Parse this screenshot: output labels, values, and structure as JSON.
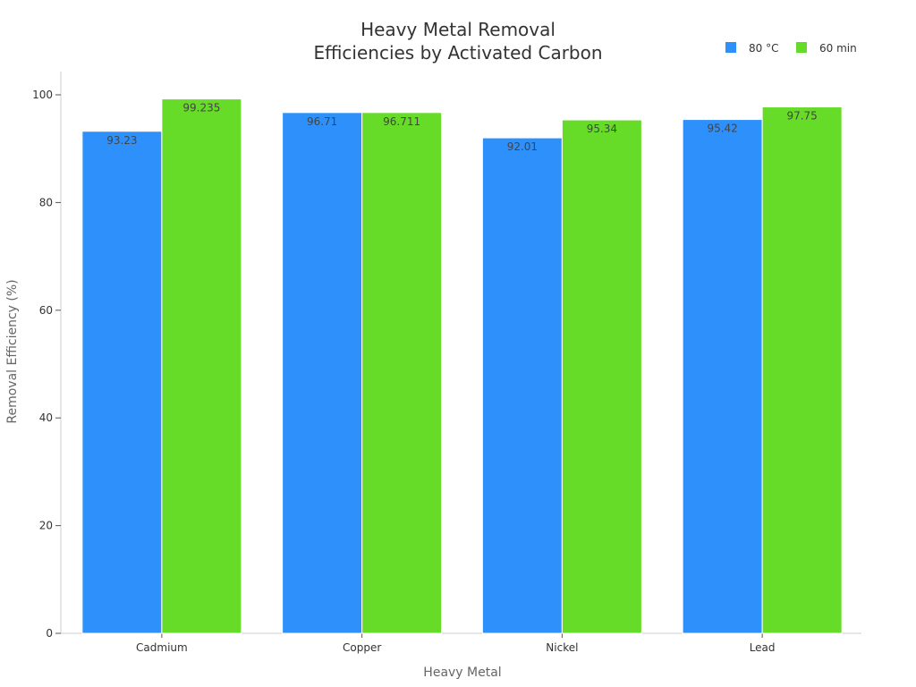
{
  "chart_data": {
    "type": "bar",
    "title_lines": [
      "Heavy Metal Removal",
      "Efficiencies by Activated Carbon"
    ],
    "xlabel": "Heavy Metal",
    "ylabel": "Removal Efficiency (%)",
    "categories": [
      "Cadmium",
      "Copper",
      "Nickel",
      "Lead"
    ],
    "ylim": [
      0,
      100
    ],
    "yticks": [
      "0",
      "20",
      "40",
      "60",
      "80",
      "100"
    ],
    "grid": false,
    "legend_position": "top-right",
    "series": [
      {
        "name": "80 °C",
        "color": "#2E90FA",
        "values": [
          93.23,
          96.71,
          92.01,
          95.42
        ],
        "labels": [
          "93.23",
          "96.71",
          "92.01",
          "95.42"
        ]
      },
      {
        "name": "60 min",
        "color": "#66DB28",
        "values": [
          99.235,
          96.711,
          95.34,
          97.75
        ],
        "labels": [
          "99.235",
          "96.711",
          "95.34",
          "97.75"
        ]
      }
    ]
  }
}
